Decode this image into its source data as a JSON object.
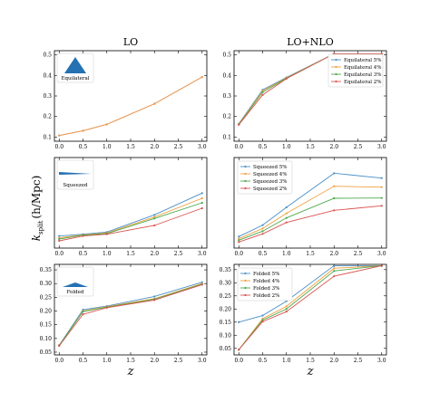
{
  "figure": {
    "col_titles": [
      "LO",
      "LO+NLO"
    ],
    "xlabel": "z",
    "ylabel": "k_split (h/Mpc)",
    "ylabel_parts": {
      "main": "k",
      "sub": "split",
      "rest": "(h/Mpc)"
    }
  },
  "chart_data": [
    {
      "panel": "equilateral-LO",
      "type": "line",
      "inset_label": "Equilateral",
      "inset_shape": "equilateral-triangle",
      "x": [
        0.0,
        0.5,
        1.0,
        2.0,
        3.0
      ],
      "xlim": [
        -0.1,
        3.1
      ],
      "ylim": [
        0.08,
        0.52
      ],
      "xticks": [
        "0.0",
        "0.5",
        "1.0",
        "1.5",
        "2.0",
        "2.5",
        "3.0"
      ],
      "yticks": [
        "0.1",
        "0.2",
        "0.3",
        "0.4",
        "0.5"
      ],
      "series": [
        {
          "values": [
            0.108,
            0.131,
            0.162,
            0.262,
            0.392
          ],
          "color": "#d9534f"
        },
        {
          "values": [
            0.108,
            0.131,
            0.162,
            0.262,
            0.392
          ],
          "color": "#e8a050"
        }
      ]
    },
    {
      "panel": "equilateral-LONLO",
      "type": "line",
      "legend": "top-right",
      "x": [
        0.0,
        0.5,
        1.0,
        2.0,
        3.0
      ],
      "xlim": [
        -0.1,
        3.1
      ],
      "ylim": [
        0.08,
        0.52
      ],
      "xticks": [
        "0.0",
        "0.5",
        "1.0",
        "1.5",
        "2.0",
        "2.5",
        "3.0"
      ],
      "yticks": [
        "0.1",
        "0.2",
        "0.3",
        "0.4",
        "0.5"
      ],
      "series": [
        {
          "name": "Equilateral 5%",
          "color": "#4a90c8",
          "values": [
            0.165,
            0.33,
            0.39,
            0.505,
            0.505
          ]
        },
        {
          "name": "Equilateral 4%",
          "color": "#f0a040",
          "values": [
            0.163,
            0.325,
            0.388,
            0.505,
            0.505
          ]
        },
        {
          "name": "Equilateral 3%",
          "color": "#4ca84c",
          "values": [
            0.162,
            0.318,
            0.386,
            0.505,
            0.505
          ]
        },
        {
          "name": "Equilateral 2%",
          "color": "#d9534f",
          "values": [
            0.16,
            0.305,
            0.384,
            0.505,
            0.505
          ]
        }
      ]
    },
    {
      "panel": "squeezed-LO",
      "type": "line",
      "inset_label": "Squeezed",
      "inset_shape": "squeezed-triangle",
      "x": [
        0.0,
        0.5,
        1.0,
        2.0,
        3.0
      ],
      "xlim": [
        -0.1,
        3.1
      ],
      "ylim": [
        0.08,
        0.38
      ],
      "xticks": [
        "0.0",
        "0.5",
        "1.0",
        "1.5",
        "2.0",
        "2.5",
        "3.0"
      ],
      "yticks": [],
      "series": [
        {
          "color": "#4a90c8",
          "values": [
            0.12,
            0.126,
            0.133,
            0.19,
            0.262
          ]
        },
        {
          "color": "#f0a040",
          "values": [
            0.114,
            0.124,
            0.13,
            0.183,
            0.245
          ]
        },
        {
          "color": "#4ca84c",
          "values": [
            0.11,
            0.123,
            0.128,
            0.178,
            0.23
          ]
        },
        {
          "color": "#d9534f",
          "values": [
            0.104,
            0.12,
            0.126,
            0.155,
            0.212
          ]
        }
      ]
    },
    {
      "panel": "squeezed-LONLO",
      "type": "line",
      "legend": "top-left",
      "x": [
        0.0,
        0.5,
        1.0,
        2.0,
        3.0
      ],
      "xlim": [
        -0.1,
        3.1
      ],
      "ylim": [
        0.08,
        0.38
      ],
      "xticks": [
        "0.0",
        "0.5",
        "1.0",
        "1.5",
        "2.0",
        "2.5",
        "3.0"
      ],
      "yticks": [],
      "series": [
        {
          "name": "Squeezed 5%",
          "color": "#4a90c8",
          "values": [
            0.118,
            0.156,
            0.215,
            0.328,
            0.312
          ]
        },
        {
          "name": "Squeezed 4%",
          "color": "#f0a040",
          "values": [
            0.111,
            0.145,
            0.195,
            0.285,
            0.282
          ]
        },
        {
          "name": "Squeezed 3%",
          "color": "#4ca84c",
          "values": [
            0.106,
            0.136,
            0.18,
            0.245,
            0.246
          ]
        },
        {
          "name": "Squeezed 2%",
          "color": "#d9534f",
          "values": [
            0.1,
            0.127,
            0.165,
            0.205,
            0.22
          ]
        }
      ]
    },
    {
      "panel": "folded-LO",
      "type": "line",
      "inset_label": "Folded",
      "inset_shape": "folded-triangle",
      "x": [
        0.0,
        0.5,
        1.0,
        2.0,
        3.0
      ],
      "xlim": [
        -0.1,
        3.1
      ],
      "ylim": [
        0.04,
        0.37
      ],
      "xticks": [
        "0.0",
        "0.5",
        "1.0",
        "1.5",
        "2.0",
        "2.5",
        "3.0"
      ],
      "yticks": [
        "0.05",
        "0.10",
        "0.15",
        "0.20",
        "0.25",
        "0.30",
        "0.35"
      ],
      "series": [
        {
          "color": "#4a90c8",
          "values": [
            0.075,
            0.205,
            0.218,
            0.253,
            0.305
          ]
        },
        {
          "color": "#f0a040",
          "values": [
            0.073,
            0.2,
            0.216,
            0.245,
            0.3
          ]
        },
        {
          "color": "#4ca84c",
          "values": [
            0.075,
            0.198,
            0.214,
            0.243,
            0.298
          ]
        },
        {
          "color": "#d9534f",
          "values": [
            0.073,
            0.188,
            0.212,
            0.24,
            0.296
          ]
        }
      ]
    },
    {
      "panel": "folded-LONLO",
      "type": "line",
      "legend": "top-left",
      "x": [
        0.0,
        0.5,
        1.0,
        2.0,
        3.0
      ],
      "xlim": [
        -0.1,
        3.1
      ],
      "ylim": [
        0.025,
        0.37
      ],
      "xticks": [
        "0.0",
        "0.5",
        "1.0",
        "1.5",
        "2.0",
        "2.5",
        "3.0"
      ],
      "yticks": [
        "0.05",
        "0.10",
        "0.15",
        "0.20",
        "0.25",
        "0.30",
        "0.35"
      ],
      "series": [
        {
          "name": "Folded 5%",
          "color": "#4a90c8",
          "values": [
            0.15,
            0.175,
            0.23,
            0.365,
            0.365
          ]
        },
        {
          "name": "Folded 4%",
          "color": "#f0a040",
          "values": [
            0.045,
            0.163,
            0.21,
            0.355,
            0.365
          ]
        },
        {
          "name": "Folded 3%",
          "color": "#4ca84c",
          "values": [
            0.045,
            0.158,
            0.2,
            0.345,
            0.365
          ]
        },
        {
          "name": "Folded 2%",
          "color": "#d9534f",
          "values": [
            0.045,
            0.152,
            0.19,
            0.325,
            0.365
          ]
        }
      ]
    }
  ]
}
